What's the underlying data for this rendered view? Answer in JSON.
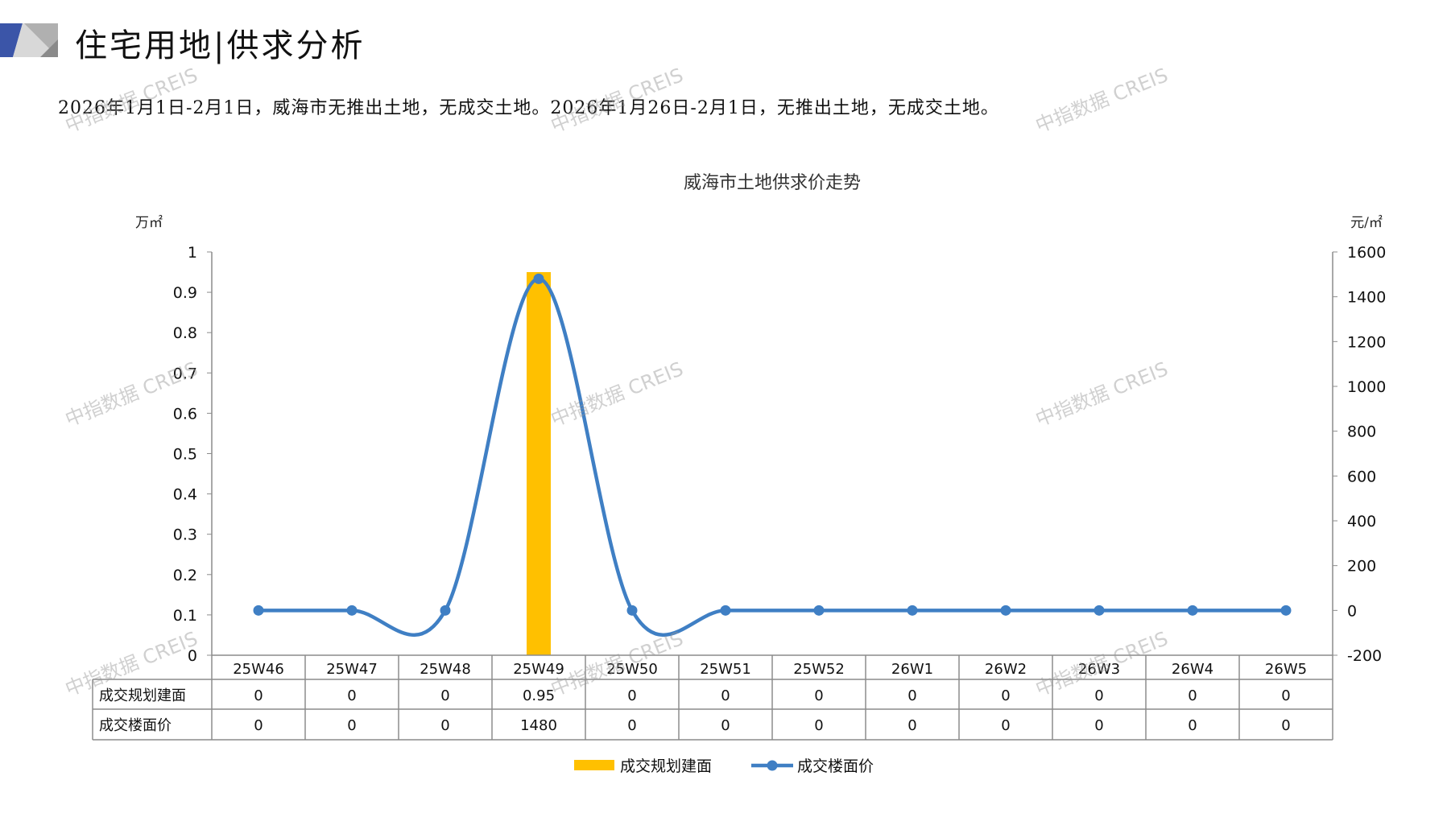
{
  "header": {
    "title": "住宅用地|供求分析"
  },
  "summary": "2026年1月1日-2月1日，威海市无推出土地，无成交土地。2026年1月26日-2月1日，无推出土地，无成交土地。",
  "watermark": "中指数据 CREIS",
  "colors": {
    "bar": "#FFC000",
    "line": "#3F7FC4",
    "axis": "#8c8c8c",
    "logo_blue": "#3B55A8",
    "logo_gray": "#B0B0B0"
  },
  "chart_data": {
    "type": "bar+line",
    "title": "威海市土地供求价走势",
    "y_left_unit": "万㎡",
    "y_right_unit": "元/㎡",
    "ylim_left": [
      0,
      1
    ],
    "ylim_right": [
      -200,
      1600
    ],
    "y_left_ticks": [
      "0",
      "0.1",
      "0.2",
      "0.3",
      "0.4",
      "0.5",
      "0.6",
      "0.7",
      "0.8",
      "0.9",
      "1"
    ],
    "y_right_ticks": [
      "-200",
      "0",
      "200",
      "400",
      "600",
      "800",
      "1000",
      "1200",
      "1400",
      "1600"
    ],
    "categories": [
      "25W46",
      "25W47",
      "25W48",
      "25W49",
      "25W50",
      "25W51",
      "25W52",
      "26W1",
      "26W2",
      "26W3",
      "26W4",
      "26W5"
    ],
    "series": [
      {
        "name": "成交规划建面",
        "type": "bar",
        "axis": "left",
        "values": [
          0,
          0,
          0,
          0.95,
          0,
          0,
          0,
          0,
          0,
          0,
          0,
          0
        ],
        "labels": [
          "0",
          "0",
          "0",
          "0.95",
          "0",
          "0",
          "0",
          "0",
          "0",
          "0",
          "0",
          "0"
        ]
      },
      {
        "name": "成交楼面价",
        "type": "line",
        "axis": "right",
        "smooth": true,
        "values": [
          0,
          0,
          0,
          1480,
          0,
          0,
          0,
          0,
          0,
          0,
          0,
          0
        ],
        "labels": [
          "0",
          "0",
          "0",
          "1480",
          "0",
          "0",
          "0",
          "0",
          "0",
          "0",
          "0",
          "0"
        ]
      }
    ],
    "legend": "bottom",
    "data_table": true
  }
}
